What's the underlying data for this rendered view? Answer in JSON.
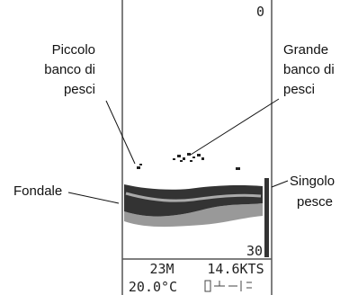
{
  "screen": {
    "depth_top": "0",
    "depth_bottom": "30",
    "depth": "23M",
    "speed": "14.6KTS",
    "temperature": "20.0°C"
  },
  "labels": {
    "small_school": [
      "Piccolo",
      "banco di",
      "pesci"
    ],
    "large_school": [
      "Grande",
      "banco di",
      "pesci"
    ],
    "single_fish": [
      "Singolo",
      "pesce"
    ],
    "bottom": "Fondale"
  }
}
